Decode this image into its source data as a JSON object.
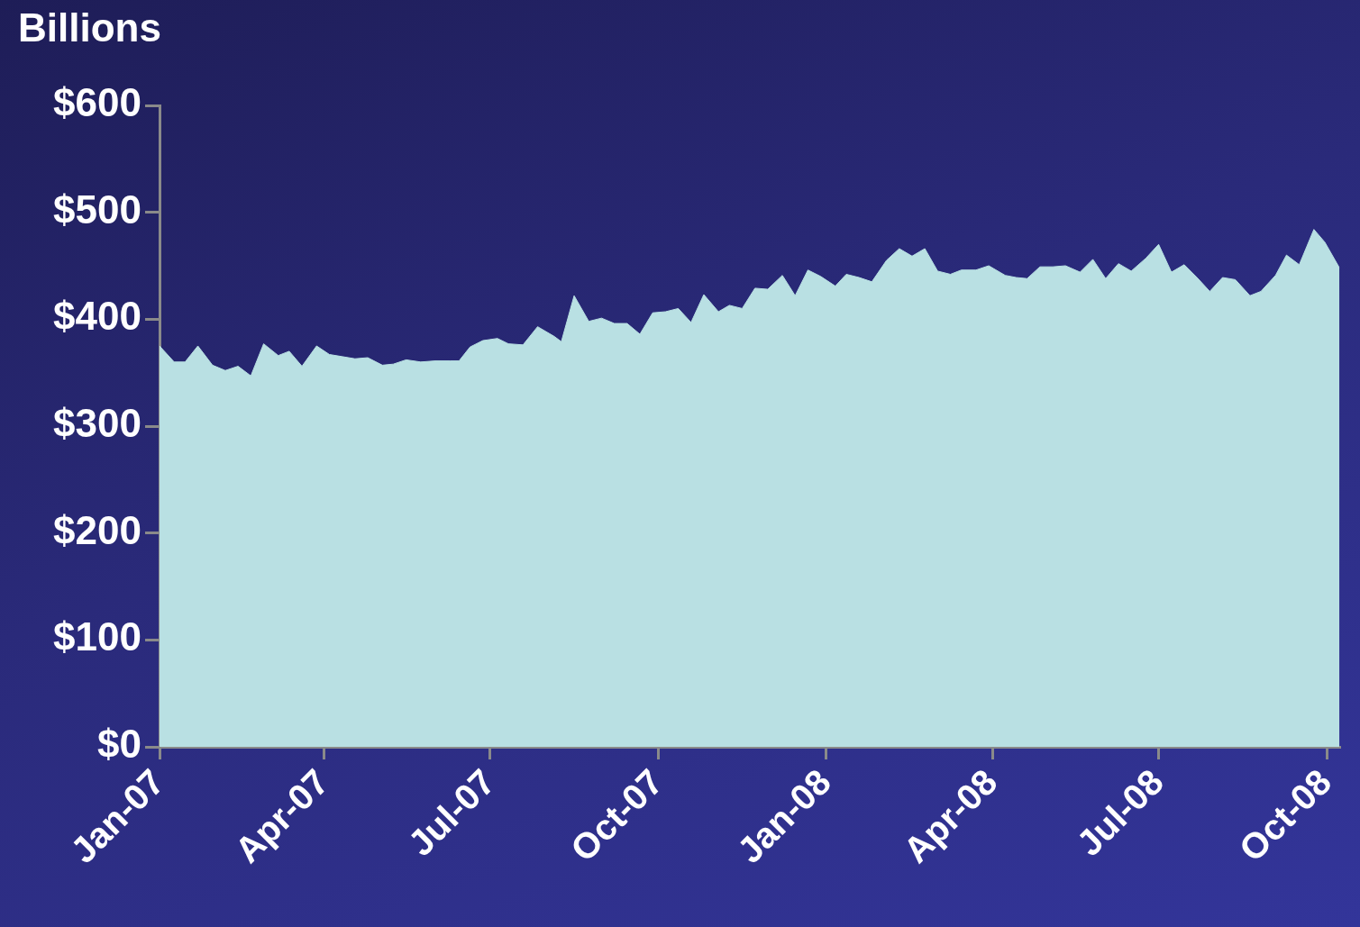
{
  "chart_data": {
    "type": "area",
    "title": "Billions",
    "x": [
      "2007-01-01",
      "2007-01-09",
      "2007-01-15",
      "2007-01-22",
      "2007-01-30",
      "2007-02-06",
      "2007-02-13",
      "2007-02-20",
      "2007-02-27",
      "2007-03-07",
      "2007-03-13",
      "2007-03-20",
      "2007-03-28",
      "2007-04-04",
      "2007-04-11",
      "2007-04-18",
      "2007-04-25",
      "2007-05-03",
      "2007-05-09",
      "2007-05-16",
      "2007-05-24",
      "2007-06-01",
      "2007-06-09",
      "2007-06-14",
      "2007-06-20",
      "2007-06-27",
      "2007-07-05",
      "2007-07-11",
      "2007-07-19",
      "2007-07-27",
      "2007-08-05",
      "2007-08-09",
      "2007-08-16",
      "2007-08-24",
      "2007-08-31",
      "2007-09-07",
      "2007-09-14",
      "2007-09-21",
      "2007-09-28",
      "2007-10-05",
      "2007-10-12",
      "2007-10-19",
      "2007-10-26",
      "2007-11-03",
      "2007-11-09",
      "2007-11-16",
      "2007-11-23",
      "2007-11-30",
      "2007-12-08",
      "2007-12-15",
      "2007-12-22",
      "2007-12-29",
      "2008-01-06",
      "2008-01-12",
      "2008-01-19",
      "2008-01-26",
      "2008-02-03",
      "2008-02-10",
      "2008-02-17",
      "2008-02-24",
      "2008-03-02",
      "2008-03-09",
      "2008-03-15",
      "2008-03-23",
      "2008-03-30",
      "2008-04-08",
      "2008-04-14",
      "2008-04-20",
      "2008-04-27",
      "2008-05-04",
      "2008-05-11",
      "2008-05-19",
      "2008-05-26",
      "2008-06-02",
      "2008-06-09",
      "2008-06-16",
      "2008-06-24",
      "2008-07-01",
      "2008-07-08",
      "2008-07-15",
      "2008-07-22",
      "2008-07-29",
      "2008-08-05",
      "2008-08-12",
      "2008-08-20",
      "2008-08-26",
      "2008-09-03",
      "2008-09-09",
      "2008-09-16",
      "2008-09-24",
      "2008-09-30",
      "2008-10-08"
    ],
    "series": [
      {
        "color": "#b9e0e3",
        "values": [
          375,
          360,
          360,
          375,
          357,
          352,
          356,
          347,
          377,
          366,
          370,
          356,
          375,
          367,
          365,
          363,
          364,
          357,
          358,
          362,
          360,
          361,
          361,
          361,
          374,
          380,
          382,
          377,
          376,
          393,
          384,
          379,
          422,
          398,
          401,
          396,
          396,
          386,
          406,
          407,
          410,
          397,
          423,
          407,
          413,
          410,
          429,
          428,
          441,
          422,
          446,
          440,
          431,
          442,
          439,
          435,
          455,
          466,
          459,
          466,
          445,
          442,
          446,
          446,
          450,
          441,
          439,
          438,
          449,
          449,
          450,
          444,
          456,
          438,
          452,
          445,
          457,
          470,
          444,
          451,
          439,
          426,
          439,
          437,
          422,
          426,
          441,
          460,
          451,
          484,
          472,
          448
        ]
      }
    ],
    "xlim": [
      "2007-01-01",
      "2008-10-08"
    ],
    "xticks": [
      {
        "value": "2007-01-01",
        "label": "Jan-07"
      },
      {
        "value": "2007-04-01",
        "label": "Apr-07"
      },
      {
        "value": "2007-07-01",
        "label": "Jul-07"
      },
      {
        "value": "2007-10-01",
        "label": "Oct-07"
      },
      {
        "value": "2008-01-01",
        "label": "Jan-08"
      },
      {
        "value": "2008-04-01",
        "label": "Apr-08"
      },
      {
        "value": "2008-07-01",
        "label": "Jul-08"
      },
      {
        "value": "2008-10-01",
        "label": "Oct-08"
      }
    ],
    "ylim": [
      0,
      600
    ],
    "yticks": [
      {
        "value": 0,
        "label": "$0"
      },
      {
        "value": 100,
        "label": "$100"
      },
      {
        "value": 200,
        "label": "$200"
      },
      {
        "value": 300,
        "label": "$300"
      },
      {
        "value": 400,
        "label": "$400"
      },
      {
        "value": 500,
        "label": "$500"
      },
      {
        "value": 600,
        "label": "$600"
      }
    ]
  }
}
